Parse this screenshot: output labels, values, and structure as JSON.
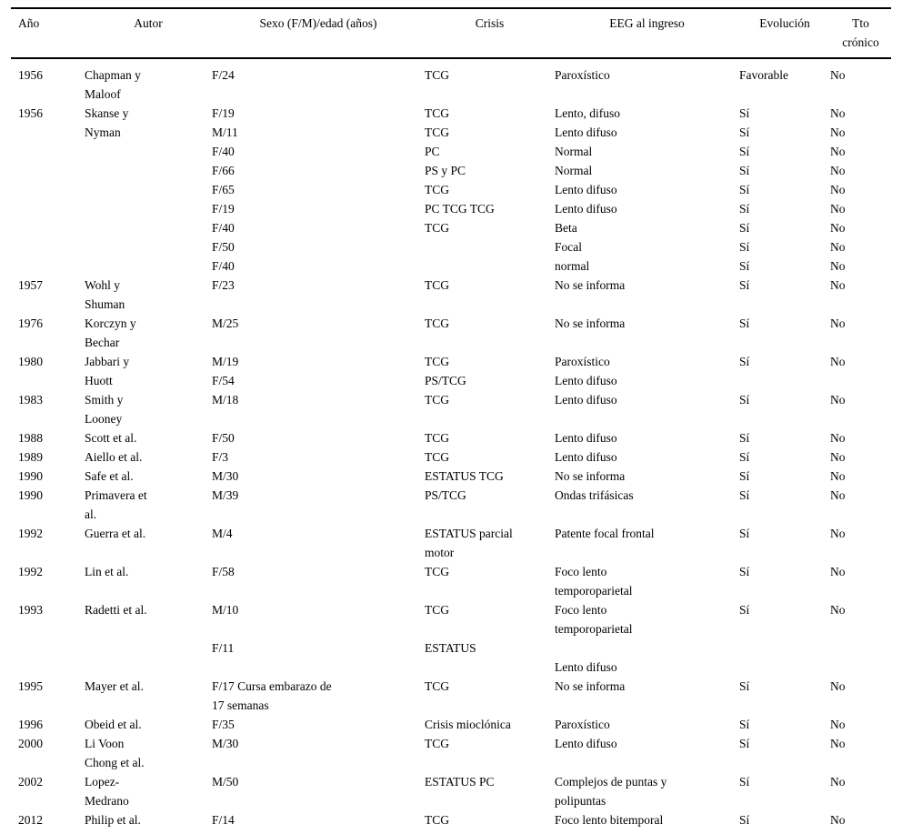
{
  "table": {
    "field_order": [
      "ano",
      "autor",
      "sexo",
      "crisis",
      "eeg",
      "evolucion",
      "tto"
    ],
    "columns": [
      {
        "label": "Año"
      },
      {
        "label": "Autor"
      },
      {
        "label": "Sexo (F/M)/edad (años)"
      },
      {
        "label": "Crisis"
      },
      {
        "label": "EEG al ingreso"
      },
      {
        "label": "Evolución"
      },
      {
        "label": "Tto\ncrónico"
      }
    ],
    "rows": [
      {
        "ano": "1956",
        "autor": "Chapman y\nMaloof",
        "sexo": "F/24",
        "crisis": "TCG",
        "eeg": "Paroxístico",
        "evolucion": "Favorable",
        "tto": "No"
      },
      {
        "ano": "1956",
        "autor": "Skanse y\nNyman",
        "sexo": "F/19\nM/11\nF/40\nF/66\nF/65\nF/19\nF/40\nF/50\nF/40",
        "crisis": "TCG\nTCG\nPC\nPS y PC\nTCG\nPC TCG TCG\nTCG",
        "eeg": "Lento, difuso\nLento difuso\nNormal\nNormal\nLento difuso\nLento difuso\nBeta\nFocal\nnormal",
        "evolucion": "Sí\nSí\nSí\nSí\nSí\nSí\nSí\nSí\nSí",
        "tto": "No\nNo\nNo\nNo\nNo\nNo\nNo\nNo\nNo"
      },
      {
        "ano": "1957",
        "autor": "Wohl y\nShuman",
        "sexo": "F/23",
        "crisis": "TCG",
        "eeg": "No se informa",
        "evolucion": "Sí",
        "tto": "No"
      },
      {
        "ano": "1976",
        "autor": "Korczyn y\nBechar",
        "sexo": "M/25",
        "crisis": "TCG",
        "eeg": "No se informa",
        "evolucion": "Sí",
        "tto": "No"
      },
      {
        "ano": "1980",
        "autor": "Jabbari y\nHuott",
        "sexo": "M/19\nF/54",
        "crisis": "TCG\nPS/TCG",
        "eeg": "Paroxístico\nLento difuso",
        "evolucion": "Sí",
        "tto": "No"
      },
      {
        "ano": "1983",
        "autor": "Smith y\nLooney",
        "sexo": "M/18",
        "crisis": "TCG",
        "eeg": "Lento difuso",
        "evolucion": "Sí",
        "tto": "No"
      },
      {
        "ano": "1988",
        "autor": "Scott et al.",
        "sexo": "F/50",
        "crisis": "TCG",
        "eeg": "Lento difuso",
        "evolucion": "Sí",
        "tto": "No"
      },
      {
        "ano": "1989",
        "autor": "Aiello et al.",
        "sexo": "F/3",
        "crisis": "TCG",
        "eeg": "Lento difuso",
        "evolucion": "Sí",
        "tto": "No"
      },
      {
        "ano": "1990",
        "autor": "Safe et al.",
        "sexo": "M/30",
        "crisis": "ESTATUS TCG",
        "eeg": "No se informa",
        "evolucion": "Sí",
        "tto": "No"
      },
      {
        "ano": "1990",
        "autor": "Primavera et\nal.",
        "sexo": "M/39",
        "crisis": "PS/TCG",
        "eeg": "Ondas trifásicas",
        "evolucion": "Sí",
        "tto": "No"
      },
      {
        "ano": "1992",
        "autor": "Guerra et al.",
        "sexo": "M/4",
        "crisis": "ESTATUS parcial\nmotor",
        "eeg": "Patente focal frontal",
        "evolucion": "Sí",
        "tto": "No"
      },
      {
        "ano": "1992",
        "autor": "Lin et al.",
        "sexo": "F/58",
        "crisis": "TCG",
        "eeg": "Foco lento\ntemporoparietal",
        "evolucion": "Sí",
        "tto": "No"
      },
      {
        "ano": "1993",
        "autor": "Radetti et al.",
        "sexo": "M/10\n\nF/11",
        "crisis": "TCG\n\nESTATUS",
        "eeg": "Foco lento\ntemporoparietal\n\nLento difuso",
        "evolucion": "Sí",
        "tto": "No"
      },
      {
        "ano": "1995",
        "autor": "Mayer et al.",
        "sexo": "F/17 Cursa embarazo de\n17 semanas",
        "crisis": "TCG",
        "eeg": "No se informa",
        "evolucion": "Sí",
        "tto": "No"
      },
      {
        "ano": "1996",
        "autor": "Obeid et al.",
        "sexo": "F/35",
        "crisis": "Crisis mioclónica",
        "eeg": "Paroxístico",
        "evolucion": "Sí",
        "tto": "No"
      },
      {
        "ano": "2000",
        "autor": "Li Voon\nChong et al.",
        "sexo": "M/30",
        "crisis": "TCG",
        "eeg": "Lento difuso",
        "evolucion": "Sí",
        "tto": "No"
      },
      {
        "ano": "2002",
        "autor": "Lopez-\nMedrano",
        "sexo": "M/50",
        "crisis": "ESTATUS PC",
        "eeg": "Complejos de puntas y\npolipuntas",
        "evolucion": "Sí",
        "tto": "No"
      },
      {
        "ano": "2012",
        "autor": "Philip et al.",
        "sexo": "F/14",
        "crisis": "TCG",
        "eeg": "Foco lento bitemporal",
        "evolucion": "Sí",
        "tto": "No"
      }
    ]
  }
}
